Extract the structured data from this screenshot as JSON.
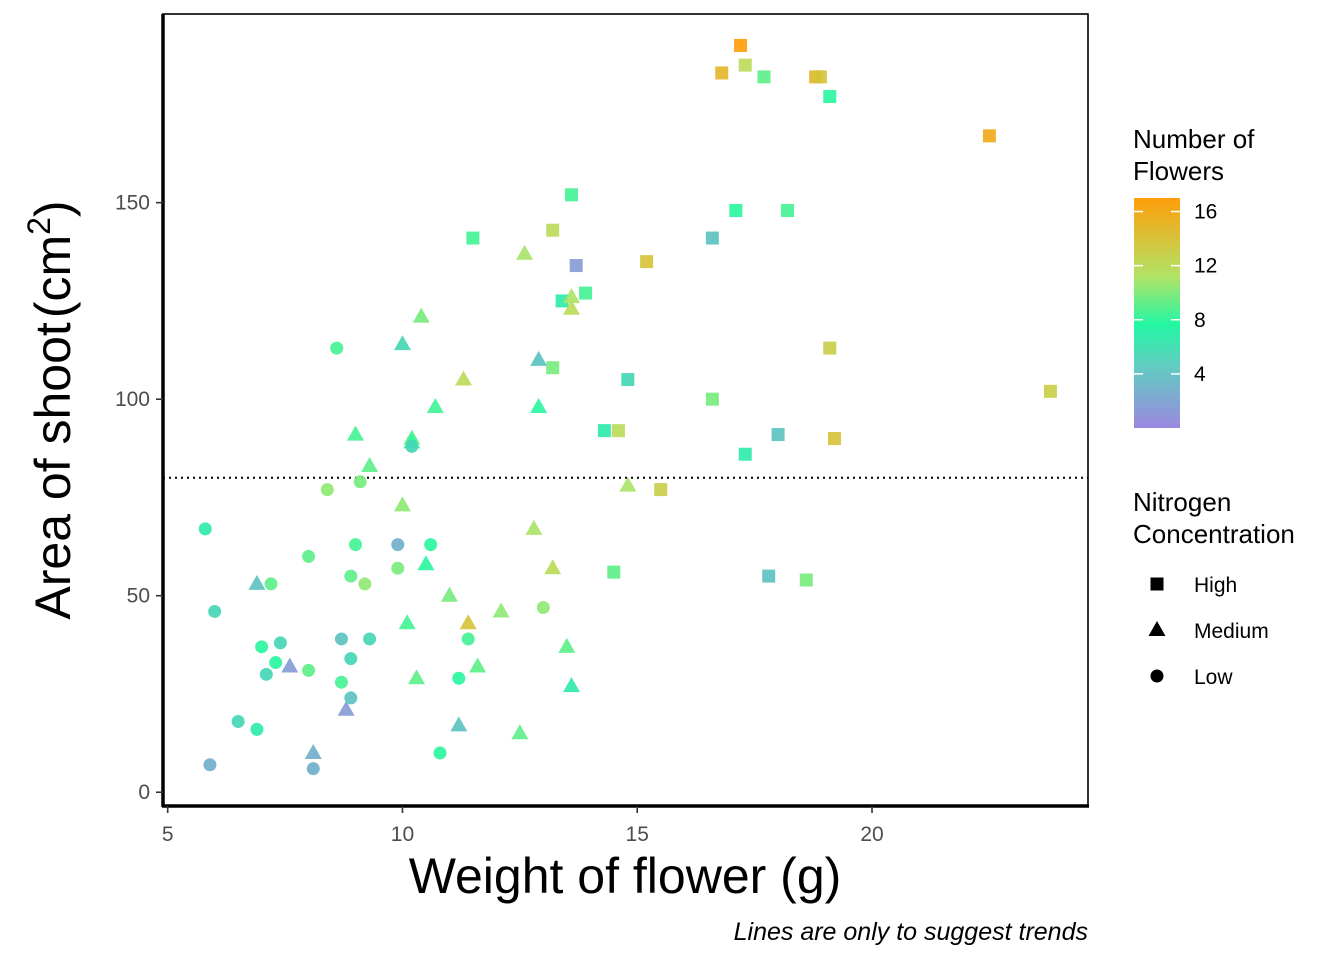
{
  "chart_data": {
    "type": "scatter",
    "xlabel": "Weight of flower (g)",
    "ylabel": {
      "prefix": "Area of shoot",
      "unit": "cm",
      "superscript": "2"
    },
    "caption": "Lines are only to suggest trends",
    "x_ticks": [
      5,
      10,
      15,
      20
    ],
    "y_ticks": [
      0,
      50,
      100,
      150
    ],
    "xlim": [
      4.9,
      24.6
    ],
    "ylim": [
      -3.5,
      198
    ],
    "reference_line": {
      "y": 80,
      "style": "dotted"
    },
    "grid": false,
    "legend_position": "right",
    "color_legend": {
      "title": [
        "Number of",
        "Flowers"
      ],
      "ticks": [
        4,
        8,
        12,
        16
      ],
      "range": [
        0,
        17
      ],
      "colors": [
        "#9c88e0",
        "#23f7a3",
        "#b2e366",
        "#ff9e0b"
      ]
    },
    "shape_legend": {
      "title": [
        "Nitrogen",
        "Concentration"
      ],
      "entries": [
        {
          "label": "High",
          "shape": "square"
        },
        {
          "label": "Medium",
          "shape": "triangle"
        },
        {
          "label": "Low",
          "shape": "circle"
        }
      ]
    },
    "series": [
      {
        "name": "High",
        "shape": "square",
        "points": [
          [
            17.2,
            190,
            17
          ],
          [
            16.8,
            183,
            15
          ],
          [
            17.3,
            185,
            12
          ],
          [
            17.7,
            182,
            8
          ],
          [
            18.8,
            182,
            15
          ],
          [
            18.9,
            182,
            14
          ],
          [
            19.1,
            177,
            6
          ],
          [
            22.5,
            167,
            16
          ],
          [
            13.6,
            152,
            7
          ],
          [
            17.1,
            148,
            6
          ],
          [
            18.2,
            148,
            7
          ],
          [
            11.5,
            141,
            7
          ],
          [
            13.2,
            143,
            12
          ],
          [
            16.6,
            141,
            3
          ],
          [
            13.7,
            134,
            1
          ],
          [
            15.2,
            135,
            14
          ],
          [
            13.4,
            125,
            5
          ],
          [
            13.9,
            127,
            7
          ],
          [
            19.1,
            113,
            13
          ],
          [
            13.2,
            108,
            9
          ],
          [
            14.8,
            105,
            4
          ],
          [
            16.6,
            100,
            9
          ],
          [
            23.8,
            102,
            13
          ],
          [
            14.3,
            92,
            5
          ],
          [
            14.6,
            92,
            12
          ],
          [
            18.0,
            91,
            3
          ],
          [
            19.2,
            90,
            14
          ],
          [
            17.3,
            86,
            5
          ],
          [
            15.5,
            77,
            13
          ],
          [
            14.5,
            56,
            8
          ],
          [
            17.8,
            55,
            3
          ],
          [
            18.6,
            54,
            9
          ]
        ]
      },
      {
        "name": "Medium",
        "shape": "triangle",
        "points": [
          [
            12.6,
            137,
            11
          ],
          [
            13.6,
            126,
            11
          ],
          [
            10.4,
            121,
            9
          ],
          [
            13.6,
            123,
            12
          ],
          [
            10.0,
            114,
            4
          ],
          [
            12.9,
            110,
            3
          ],
          [
            11.3,
            105,
            12
          ],
          [
            12.9,
            98,
            6
          ],
          [
            10.7,
            98,
            7
          ],
          [
            9.0,
            91,
            7
          ],
          [
            10.2,
            90,
            8
          ],
          [
            10.2,
            89,
            6
          ],
          [
            9.3,
            83,
            8
          ],
          [
            14.8,
            78,
            11
          ],
          [
            10.0,
            73,
            10
          ],
          [
            12.8,
            67,
            11
          ],
          [
            13.2,
            57,
            12
          ],
          [
            10.5,
            58,
            6
          ],
          [
            6.9,
            53,
            3
          ],
          [
            11.0,
            50,
            9
          ],
          [
            12.1,
            46,
            10
          ],
          [
            10.1,
            43,
            7
          ],
          [
            11.4,
            43,
            14
          ],
          [
            13.5,
            37,
            8
          ],
          [
            11.6,
            32,
            8
          ],
          [
            7.6,
            32,
            1
          ],
          [
            10.3,
            29,
            8
          ],
          [
            13.6,
            27,
            5
          ],
          [
            8.8,
            21,
            1
          ],
          [
            11.2,
            17,
            3
          ],
          [
            12.5,
            15,
            8
          ],
          [
            8.1,
            10,
            2
          ]
        ]
      },
      {
        "name": "Low",
        "shape": "circle",
        "points": [
          [
            8.6,
            113,
            7
          ],
          [
            8.4,
            77,
            10
          ],
          [
            9.1,
            79,
            9
          ],
          [
            10.2,
            88,
            4
          ],
          [
            5.8,
            67,
            5
          ],
          [
            9.0,
            63,
            7
          ],
          [
            10.6,
            63,
            6
          ],
          [
            9.9,
            63,
            2
          ],
          [
            8.0,
            60,
            8
          ],
          [
            9.9,
            57,
            9
          ],
          [
            8.9,
            55,
            8
          ],
          [
            9.2,
            53,
            10
          ],
          [
            7.2,
            53,
            8
          ],
          [
            13.0,
            47,
            10
          ],
          [
            6.0,
            46,
            4
          ],
          [
            11.4,
            39,
            7
          ],
          [
            8.7,
            39,
            3
          ],
          [
            9.3,
            39,
            4
          ],
          [
            7.4,
            38,
            4
          ],
          [
            7.0,
            37,
            6
          ],
          [
            8.9,
            34,
            4
          ],
          [
            7.3,
            33,
            6
          ],
          [
            7.1,
            30,
            4
          ],
          [
            8.0,
            31,
            8
          ],
          [
            11.2,
            29,
            6
          ],
          [
            8.7,
            28,
            7
          ],
          [
            8.9,
            24,
            3
          ],
          [
            6.5,
            18,
            4
          ],
          [
            6.9,
            16,
            5
          ],
          [
            10.8,
            10,
            6
          ],
          [
            5.9,
            7,
            2
          ],
          [
            8.1,
            6,
            2
          ]
        ]
      }
    ]
  }
}
